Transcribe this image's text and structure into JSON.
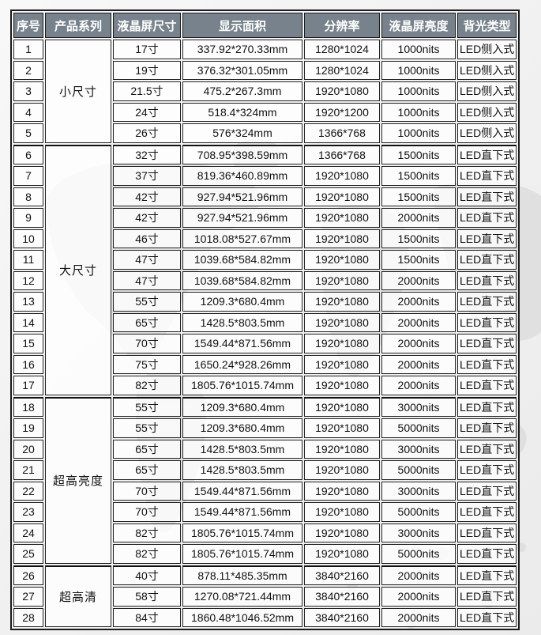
{
  "colors": {
    "header_bg": "#77828c",
    "header_text": "#ffffff",
    "border": "#1b1b1b",
    "page_bg": "#f0f0f0",
    "watermark": "#d9d9d9"
  },
  "table": {
    "headers": [
      "序号",
      "产品系列",
      "液晶屏尺寸",
      "显示面积",
      "分辨率",
      "液晶屏亮度",
      "背光类型"
    ],
    "groups": [
      {
        "series": "小尺寸",
        "rows": [
          {
            "no": "1",
            "size": "17寸",
            "area": "337.92*270.33mm",
            "resolution": "1280*1024",
            "brightness": "1000nits",
            "backlight": "LED侧入式"
          },
          {
            "no": "2",
            "size": "19寸",
            "area": "376.32*301.05mm",
            "resolution": "1280*1024",
            "brightness": "1000nits",
            "backlight": "LED侧入式"
          },
          {
            "no": "3",
            "size": "21.5寸",
            "area": "475.2*267.3mm",
            "resolution": "1920*1080",
            "brightness": "1000nits",
            "backlight": "LED侧入式"
          },
          {
            "no": "4",
            "size": "24寸",
            "area": "518.4*324mm",
            "resolution": "1920*1200",
            "brightness": "1000nits",
            "backlight": "LED侧入式"
          },
          {
            "no": "5",
            "size": "26寸",
            "area": "576*324mm",
            "resolution": "1366*768",
            "brightness": "1000nits",
            "backlight": "LED侧入式"
          }
        ]
      },
      {
        "series": "大尺寸",
        "rows": [
          {
            "no": "6",
            "size": "32寸",
            "area": "708.95*398.59mm",
            "resolution": "1366*768",
            "brightness": "1500nits",
            "backlight": "LED直下式"
          },
          {
            "no": "7",
            "size": "37寸",
            "area": "819.36*460.89mm",
            "resolution": "1920*1080",
            "brightness": "1500nits",
            "backlight": "LED直下式"
          },
          {
            "no": "8",
            "size": "42寸",
            "area": "927.94*521.96mm",
            "resolution": "1920*1080",
            "brightness": "1500nits",
            "backlight": "LED直下式"
          },
          {
            "no": "9",
            "size": "42寸",
            "area": "927.94*521.96mm",
            "resolution": "1920*1080",
            "brightness": "2000nits",
            "backlight": "LED直下式"
          },
          {
            "no": "10",
            "size": "46寸",
            "area": "1018.08*527.67mm",
            "resolution": "1920*1080",
            "brightness": "1500nits",
            "backlight": "LED直下式"
          },
          {
            "no": "11",
            "size": "47寸",
            "area": "1039.68*584.82mm",
            "resolution": "1920*1080",
            "brightness": "1500nits",
            "backlight": "LED直下式"
          },
          {
            "no": "12",
            "size": "47寸",
            "area": "1039.68*584.82mm",
            "resolution": "1920*1080",
            "brightness": "2000nits",
            "backlight": "LED直下式"
          },
          {
            "no": "13",
            "size": "55寸",
            "area": "1209.3*680.4mm",
            "resolution": "1920*1080",
            "brightness": "2000nits",
            "backlight": "LED直下式"
          },
          {
            "no": "14",
            "size": "65寸",
            "area": "1428.5*803.5mm",
            "resolution": "1920*1080",
            "brightness": "2000nits",
            "backlight": "LED直下式"
          },
          {
            "no": "15",
            "size": "70寸",
            "area": "1549.44*871.56mm",
            "resolution": "1920*1080",
            "brightness": "2000nits",
            "backlight": "LED直下式"
          },
          {
            "no": "16",
            "size": "75寸",
            "area": "1650.24*928.26mm",
            "resolution": "1920*1080",
            "brightness": "2000nits",
            "backlight": "LED直下式"
          },
          {
            "no": "17",
            "size": "82寸",
            "area": "1805.76*1015.74mm",
            "resolution": "1920*1080",
            "brightness": "2000nits",
            "backlight": "LED直下式"
          }
        ]
      },
      {
        "series": "超高亮度",
        "rows": [
          {
            "no": "18",
            "size": "55寸",
            "area": "1209.3*680.4mm",
            "resolution": "1920*1080",
            "brightness": "3000nits",
            "backlight": "LED直下式"
          },
          {
            "no": "19",
            "size": "55寸",
            "area": "1209.3*680.4mm",
            "resolution": "1920*1080",
            "brightness": "5000nits",
            "backlight": "LED直下式"
          },
          {
            "no": "20",
            "size": "65寸",
            "area": "1428.5*803.5mm",
            "resolution": "1920*1080",
            "brightness": "3000nits",
            "backlight": "LED直下式"
          },
          {
            "no": "21",
            "size": "65寸",
            "area": "1428.5*803.5mm",
            "resolution": "1920*1080",
            "brightness": "5000nits",
            "backlight": "LED直下式"
          },
          {
            "no": "22",
            "size": "70寸",
            "area": "1549.44*871.56mm",
            "resolution": "1920*1080",
            "brightness": "3000nits",
            "backlight": "LED直下式"
          },
          {
            "no": "23",
            "size": "70寸",
            "area": "1549.44*871.56mm",
            "resolution": "1920*1080",
            "brightness": "5000nits",
            "backlight": "LED直下式"
          },
          {
            "no": "24",
            "size": "82寸",
            "area": "1805.76*1015.74mm",
            "resolution": "1920*1080",
            "brightness": "3000nits",
            "backlight": "LED直下式"
          },
          {
            "no": "25",
            "size": "82寸",
            "area": "1805.76*1015.74mm",
            "resolution": "1920*1080",
            "brightness": "5000nits",
            "backlight": "LED直下式"
          }
        ]
      },
      {
        "series": "超高清",
        "rows": [
          {
            "no": "26",
            "size": "40寸",
            "area": "878.11*485.35mm",
            "resolution": "3840*2160",
            "brightness": "2000nits",
            "backlight": "LED直下式"
          },
          {
            "no": "27",
            "size": "58寸",
            "area": "1270.08*721.44mm",
            "resolution": "3840*2160",
            "brightness": "2000nits",
            "backlight": "LED直下式"
          },
          {
            "no": "28",
            "size": "84寸",
            "area": "1860.48*1046.52mm",
            "resolution": "3840*2160",
            "brightness": "2000nits",
            "backlight": "LED直下式"
          }
        ]
      }
    ]
  }
}
